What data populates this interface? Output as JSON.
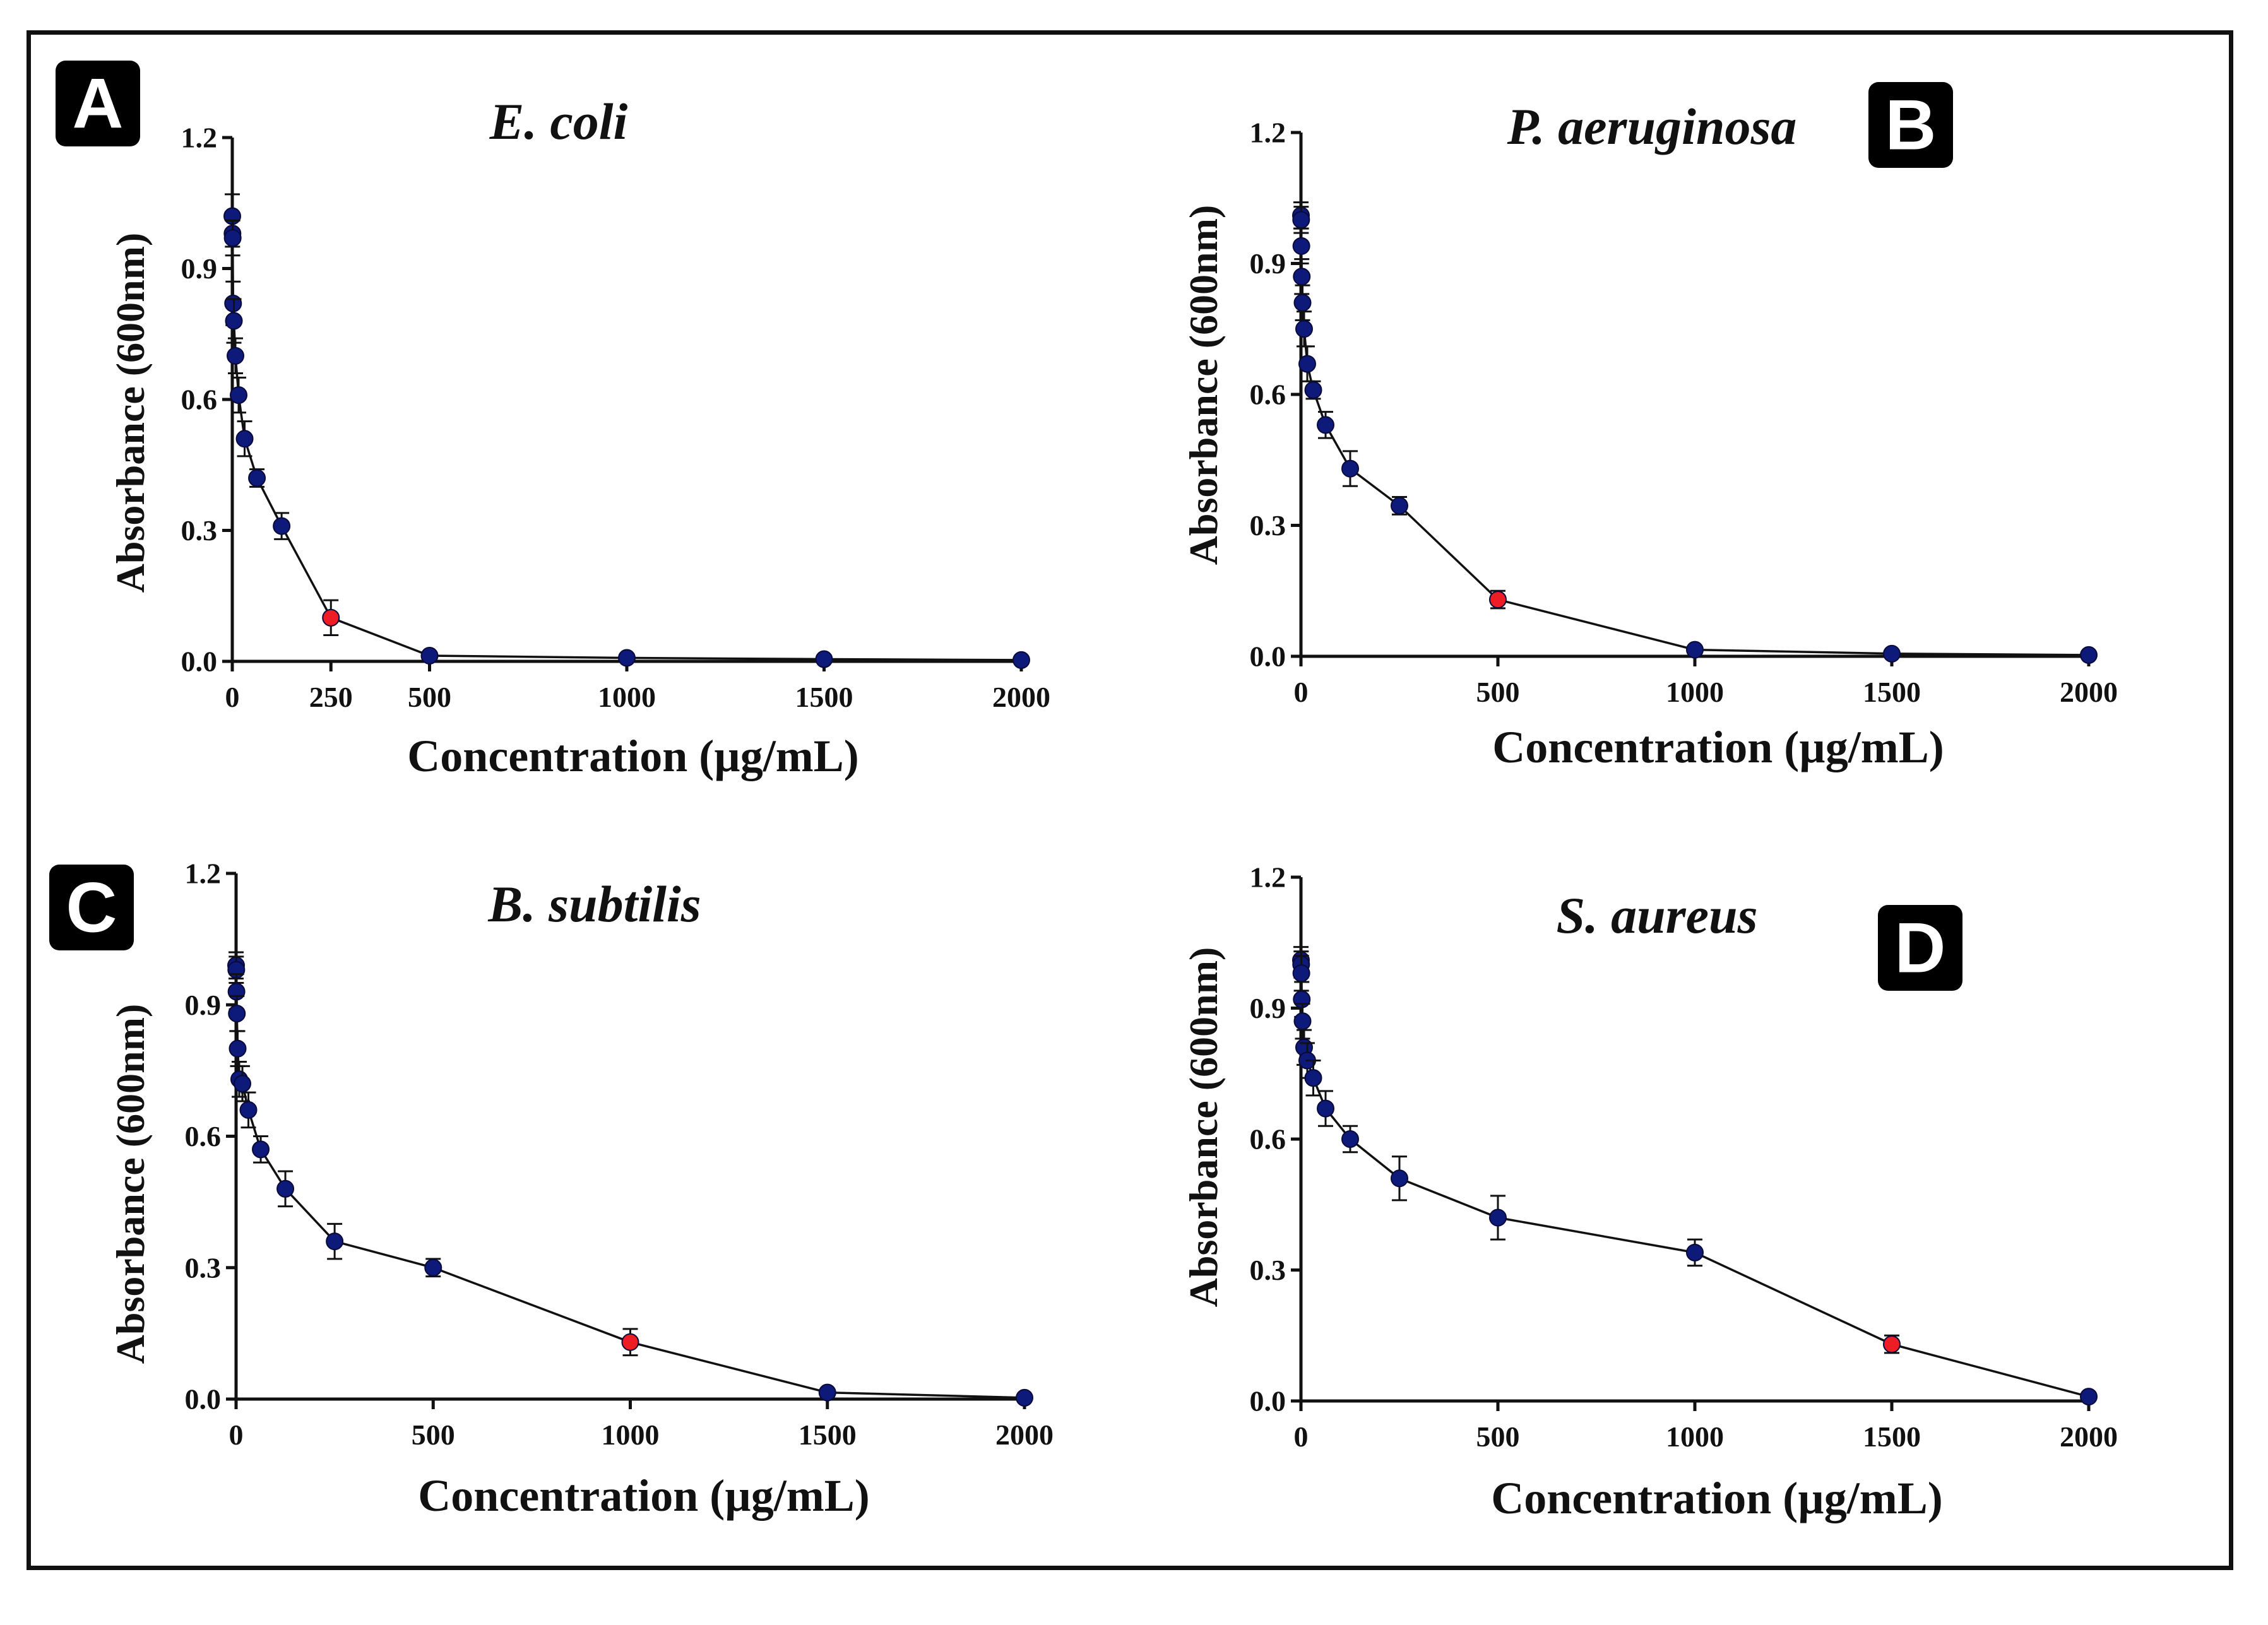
{
  "colors": {
    "point": "#0d1a7a",
    "highlight": "#ee1c25",
    "line": "#111111",
    "badge": "#000000"
  },
  "chart_data": [
    {
      "panel": "A",
      "title": "E. coli",
      "type": "line",
      "xlabel": "Concentration (µg/mL)",
      "ylabel": "Absorbance (600nm)",
      "xlim": [
        0,
        2000
      ],
      "ylim": [
        0,
        1.2
      ],
      "xticks": [
        0,
        250,
        500,
        1000,
        1500,
        2000
      ],
      "yticks": [
        0.0,
        0.3,
        0.6,
        0.9,
        1.2
      ],
      "xtick_labels": [
        "0",
        "250",
        "500",
        "1000",
        "1500",
        "2000"
      ],
      "ytick_labels": [
        "0.0",
        "0.3",
        "0.6",
        "0.9",
        "1.2"
      ],
      "x": [
        0,
        0.5,
        1,
        2,
        4,
        8,
        16,
        31.25,
        62.5,
        125,
        250,
        500,
        1000,
        1500,
        2000
      ],
      "y": [
        1.02,
        0.98,
        0.97,
        0.82,
        0.78,
        0.7,
        0.61,
        0.51,
        0.42,
        0.31,
        0.1,
        0.013,
        0.008,
        0.005,
        0.003
      ],
      "err": [
        0.05,
        0.03,
        0.04,
        0.05,
        0.05,
        0.04,
        0.04,
        0.04,
        0.02,
        0.03,
        0.04,
        0.005,
        0.005,
        0.003,
        0.003
      ],
      "highlight_x": 250
    },
    {
      "panel": "B",
      "title": "P. aeruginosa",
      "type": "line",
      "xlabel": "Concentration (µg/mL)",
      "ylabel": "Absorbance (600nm)",
      "xlim": [
        0,
        2000
      ],
      "ylim": [
        0,
        1.2
      ],
      "xticks": [
        0,
        500,
        1000,
        1500,
        2000
      ],
      "yticks": [
        0.0,
        0.3,
        0.6,
        0.9,
        1.2
      ],
      "xtick_labels": [
        "0",
        "500",
        "1000",
        "1500",
        "2000"
      ],
      "ytick_labels": [
        "0.0",
        "0.3",
        "0.6",
        "0.9",
        "1.2"
      ],
      "x": [
        0,
        0.5,
        1,
        2,
        4,
        8,
        16,
        31.25,
        62.5,
        125,
        250,
        500,
        1000,
        1500,
        2000
      ],
      "y": [
        1.01,
        1.0,
        0.94,
        0.87,
        0.81,
        0.75,
        0.67,
        0.61,
        0.53,
        0.43,
        0.345,
        0.13,
        0.015,
        0.006,
        0.003
      ],
      "err": [
        0.03,
        0.03,
        0.04,
        0.04,
        0.04,
        0.04,
        0.04,
        0.02,
        0.03,
        0.04,
        0.02,
        0.02,
        0.005,
        0.003,
        0.003
      ],
      "highlight_x": 500
    },
    {
      "panel": "C",
      "title": "B. subtilis",
      "type": "line",
      "xlabel": "Concentration (µg/mL)",
      "ylabel": "Absorbance (600nm)",
      "xlim": [
        0,
        2000
      ],
      "ylim": [
        0,
        1.2
      ],
      "xticks": [
        0,
        500,
        1000,
        1500,
        2000
      ],
      "yticks": [
        0.0,
        0.3,
        0.6,
        0.9,
        1.2
      ],
      "xtick_labels": [
        "0",
        "500",
        "1000",
        "1500",
        "2000"
      ],
      "ytick_labels": [
        "0.0",
        "0.3",
        "0.6",
        "0.9",
        "1.2"
      ],
      "x": [
        0,
        0.5,
        1,
        2,
        4,
        8,
        16,
        31.25,
        62.5,
        125,
        250,
        500,
        1000,
        1500,
        2000
      ],
      "y": [
        0.99,
        0.98,
        0.93,
        0.88,
        0.8,
        0.73,
        0.72,
        0.66,
        0.57,
        0.48,
        0.36,
        0.3,
        0.13,
        0.015,
        0.003
      ],
      "err": [
        0.03,
        0.03,
        0.04,
        0.04,
        0.04,
        0.04,
        0.04,
        0.04,
        0.03,
        0.04,
        0.04,
        0.02,
        0.03,
        0.005,
        0.003
      ],
      "highlight_x": 1000
    },
    {
      "panel": "D",
      "title": "S. aureus",
      "type": "line",
      "xlabel": "Concentration (µg/mL)",
      "ylabel": "Absorbance (600nm)",
      "xlim": [
        0,
        2000
      ],
      "ylim": [
        0,
        1.2
      ],
      "xticks": [
        0,
        500,
        1000,
        1500,
        2000
      ],
      "yticks": [
        0.0,
        0.3,
        0.6,
        0.9,
        1.2
      ],
      "xtick_labels": [
        "0",
        "500",
        "1000",
        "1500",
        "2000"
      ],
      "ytick_labels": [
        "0.0",
        "0.3",
        "0.6",
        "0.9",
        "1.2"
      ],
      "x": [
        0,
        0.5,
        1,
        2,
        4,
        8,
        16,
        31.25,
        62.5,
        125,
        250,
        500,
        1000,
        1500,
        2000
      ],
      "y": [
        1.01,
        1.0,
        0.98,
        0.92,
        0.87,
        0.81,
        0.78,
        0.74,
        0.67,
        0.6,
        0.51,
        0.42,
        0.34,
        0.13,
        0.01
      ],
      "err": [
        0.03,
        0.03,
        0.04,
        0.04,
        0.04,
        0.04,
        0.04,
        0.04,
        0.04,
        0.03,
        0.05,
        0.05,
        0.03,
        0.02,
        0.005
      ],
      "highlight_x": 1500
    }
  ]
}
